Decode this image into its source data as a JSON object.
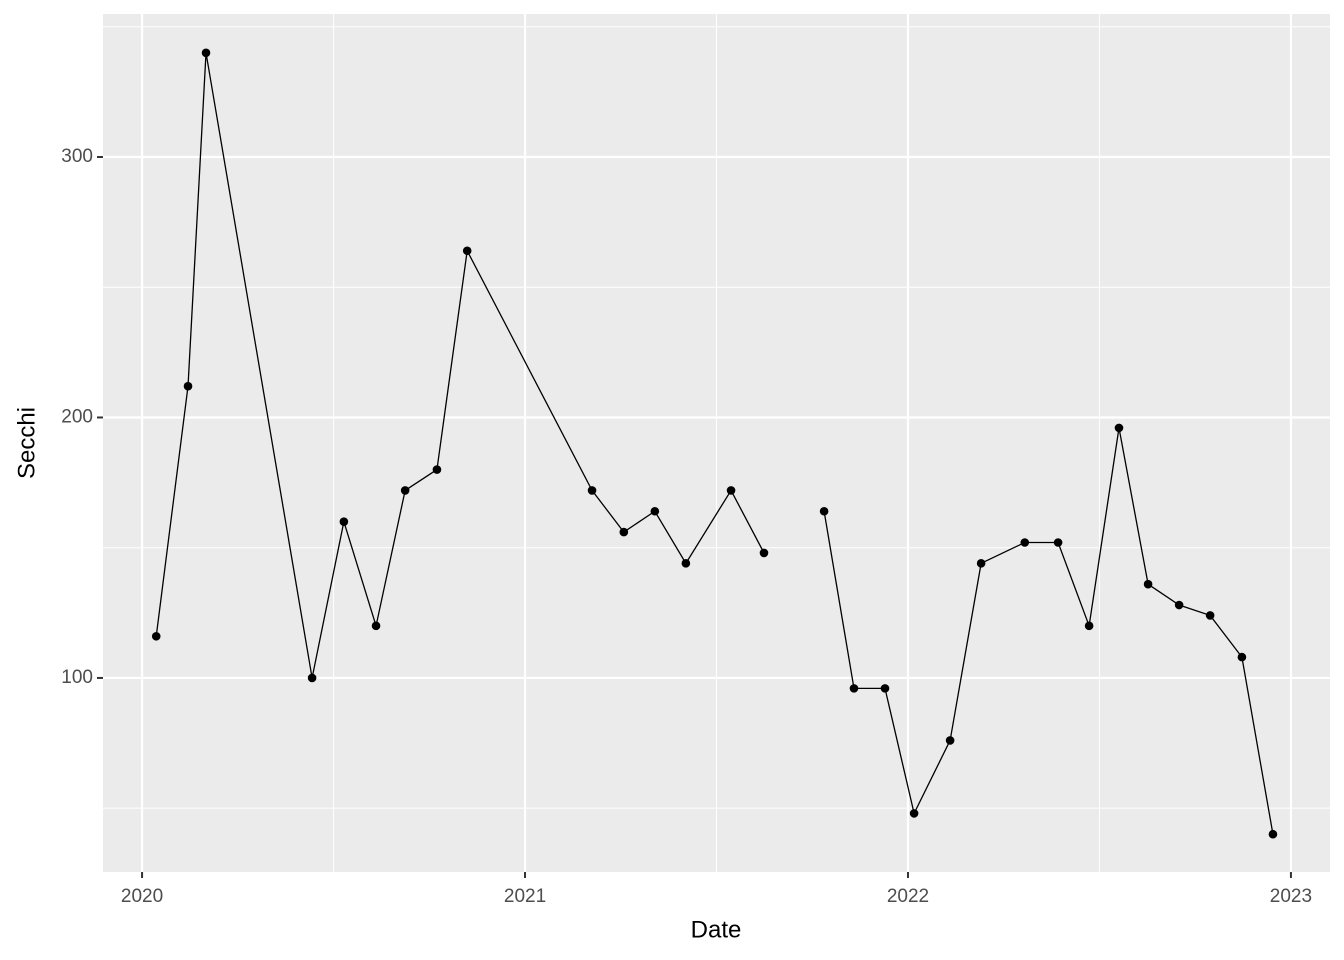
{
  "chart_data": {
    "type": "line",
    "x_label": "Date",
    "y_label": "Secchi",
    "x": [
      2020.037,
      2020.12,
      2020.167,
      2020.444,
      2020.527,
      2020.611,
      2020.687,
      2020.77,
      2020.849,
      2021.175,
      2021.258,
      2021.339,
      2021.42,
      2021.538,
      2021.624,
      2021.7,
      2021.781,
      2021.859,
      2021.94,
      2022.016,
      2022.11,
      2022.191,
      2022.305,
      2022.392,
      2022.473,
      2022.551,
      2022.627,
      2022.708,
      2022.789,
      2022.872,
      2022.953
    ],
    "series": [
      {
        "color": "#000000",
        "values": [
          116,
          212,
          340,
          100,
          160,
          120,
          172,
          180,
          264,
          172,
          156,
          164,
          144,
          172,
          148,
          null,
          164,
          96,
          96,
          48,
          76,
          144,
          152,
          152,
          120,
          196,
          136,
          128,
          124,
          108,
          40
        ]
      }
    ],
    "xlim": [
      2019.898,
      2023.102
    ],
    "xticks": [
      2020,
      2021,
      2022,
      2023
    ],
    "minor_xticks": [
      2020.5,
      2021.5,
      2022.5
    ],
    "ylim": [
      25.5,
      354.9
    ],
    "yticks": [
      100,
      200,
      300
    ],
    "minor_yticks": [
      50,
      150,
      250,
      350
    ],
    "grid": true,
    "panel_color": "#ebebeb"
  }
}
